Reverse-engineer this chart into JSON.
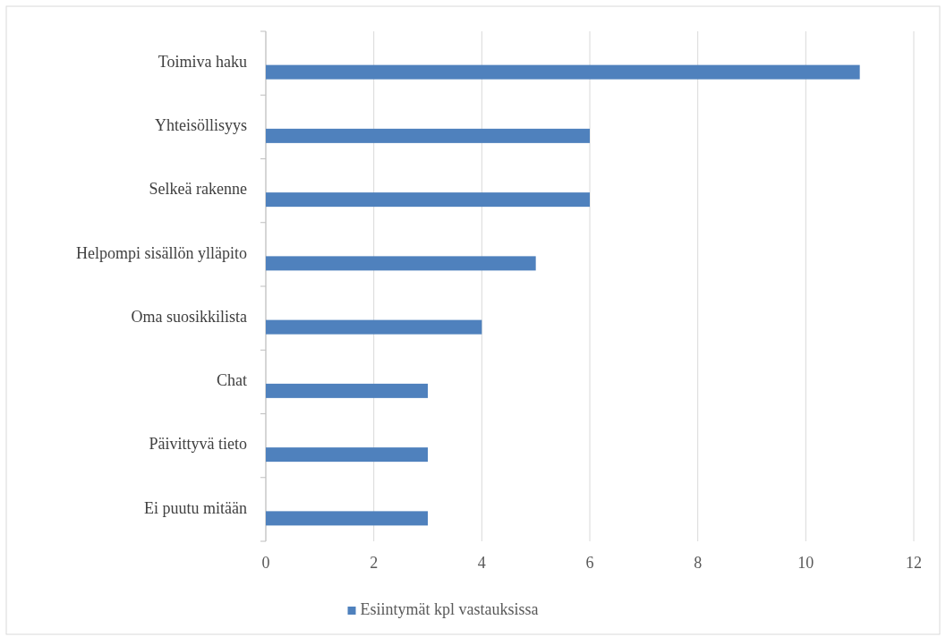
{
  "chart_data": {
    "type": "bar",
    "orientation": "horizontal",
    "categories": [
      "Toimiva haku",
      "Yhteisöllisyys",
      "Selkeä rakenne",
      "Helpompi sisällön ylläpito",
      "Oma suosikkilista",
      "Chat",
      "Päivittyvä tieto",
      "Ei puutu mitään"
    ],
    "series": [
      {
        "name": "Esiintymät kpl vastauksissa",
        "color": "#4f81bd",
        "values": [
          11,
          6,
          6,
          5,
          4,
          3,
          3,
          3
        ]
      }
    ],
    "xlim": [
      0,
      12
    ],
    "xticks": [
      0,
      2,
      4,
      6,
      8,
      10,
      12
    ],
    "grid": "x",
    "legend": "bottom"
  }
}
